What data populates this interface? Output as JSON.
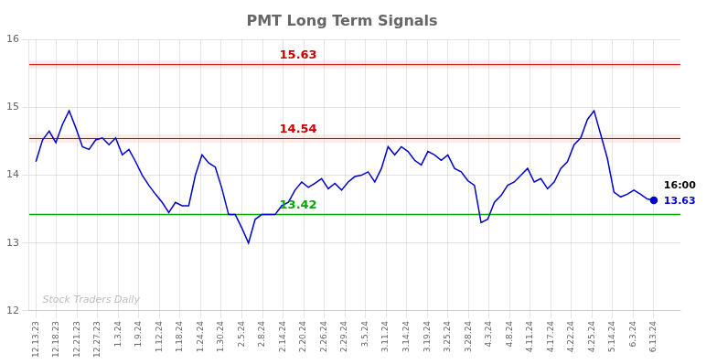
{
  "chart_data": {
    "type": "line",
    "title": "PMT Long Term Signals",
    "color": "#0000cc",
    "marker": "circle",
    "values": [
      14.2,
      14.52,
      14.65,
      14.48,
      14.75,
      14.95,
      14.7,
      14.42,
      14.38,
      14.52,
      14.55,
      14.45,
      14.55,
      14.3,
      14.38,
      14.2,
      14.0,
      13.85,
      13.72,
      13.6,
      13.45,
      13.6,
      13.55,
      13.55,
      14.0,
      14.3,
      14.18,
      14.12,
      13.8,
      13.42,
      13.42,
      13.22,
      13.0,
      13.35,
      13.42,
      13.42,
      13.42,
      13.55,
      13.6,
      13.78,
      13.9,
      13.82,
      13.88,
      13.95,
      13.8,
      13.88,
      13.78,
      13.9,
      13.98,
      14.0,
      14.05,
      13.9,
      14.1,
      14.42,
      14.3,
      14.42,
      14.35,
      14.22,
      14.15,
      14.35,
      14.3,
      14.22,
      14.3,
      14.1,
      14.05,
      13.92,
      13.85,
      13.3,
      13.35,
      13.6,
      13.7,
      13.85,
      13.9,
      14.0,
      14.1,
      13.9,
      13.95,
      13.8,
      13.9,
      14.1,
      14.2,
      14.45,
      14.55,
      14.82,
      14.95,
      14.6,
      14.25,
      13.75,
      13.68,
      13.72,
      13.78,
      13.72,
      13.65,
      13.63
    ],
    "xlim": [
      -1,
      97
    ],
    "xticks": [
      {
        "value": 0,
        "label": "12.13.23"
      },
      {
        "value": 3.1,
        "label": "12.18.23"
      },
      {
        "value": 6.2,
        "label": "12.21.23"
      },
      {
        "value": 9.3,
        "label": "12.27.23"
      },
      {
        "value": 12.4,
        "label": "1.3.24"
      },
      {
        "value": 15.5,
        "label": "1.9.24"
      },
      {
        "value": 18.6,
        "label": "1.12.24"
      },
      {
        "value": 21.7,
        "label": "1.18.24"
      },
      {
        "value": 24.8,
        "label": "1.24.24"
      },
      {
        "value": 27.9,
        "label": "1.30.24"
      },
      {
        "value": 31,
        "label": "2.5.24"
      },
      {
        "value": 34.1,
        "label": "2.8.24"
      },
      {
        "value": 37.2,
        "label": "2.14.24"
      },
      {
        "value": 40.3,
        "label": "2.20.24"
      },
      {
        "value": 43.4,
        "label": "2.26.24"
      },
      {
        "value": 46.5,
        "label": "2.29.24"
      },
      {
        "value": 49.6,
        "label": "3.5.24"
      },
      {
        "value": 52.7,
        "label": "3.11.24"
      },
      {
        "value": 55.8,
        "label": "3.14.24"
      },
      {
        "value": 58.9,
        "label": "3.19.24"
      },
      {
        "value": 62,
        "label": "3.25.24"
      },
      {
        "value": 65.1,
        "label": "3.28.24"
      },
      {
        "value": 68.2,
        "label": "4.3.24"
      },
      {
        "value": 71.3,
        "label": "4.8.24"
      },
      {
        "value": 74.4,
        "label": "4.11.24"
      },
      {
        "value": 77.5,
        "label": "4.17.24"
      },
      {
        "value": 80.6,
        "label": "4.22.24"
      },
      {
        "value": 83.7,
        "label": "4.25.24"
      },
      {
        "value": 86.8,
        "label": "5.14.24"
      },
      {
        "value": 89.9,
        "label": "6.3.24"
      },
      {
        "value": 93,
        "label": "6.13.24"
      }
    ],
    "ylim": [
      12,
      16
    ],
    "yticks": [
      12,
      13,
      14,
      15,
      16
    ],
    "grid": true,
    "reference_lines": [
      {
        "value": 15.63,
        "label": "15.63",
        "color": "#cc0000",
        "line_style": "band"
      },
      {
        "value": 14.54,
        "label": "14.54",
        "color": "#cc0000",
        "line_style": "band"
      },
      {
        "value": 13.42,
        "label": "13.42",
        "color": "#00aa00",
        "line_style": "solid"
      }
    ],
    "last_point_labels": [
      "16:00",
      "13.63"
    ],
    "watermark": "Stock Traders Daily"
  }
}
